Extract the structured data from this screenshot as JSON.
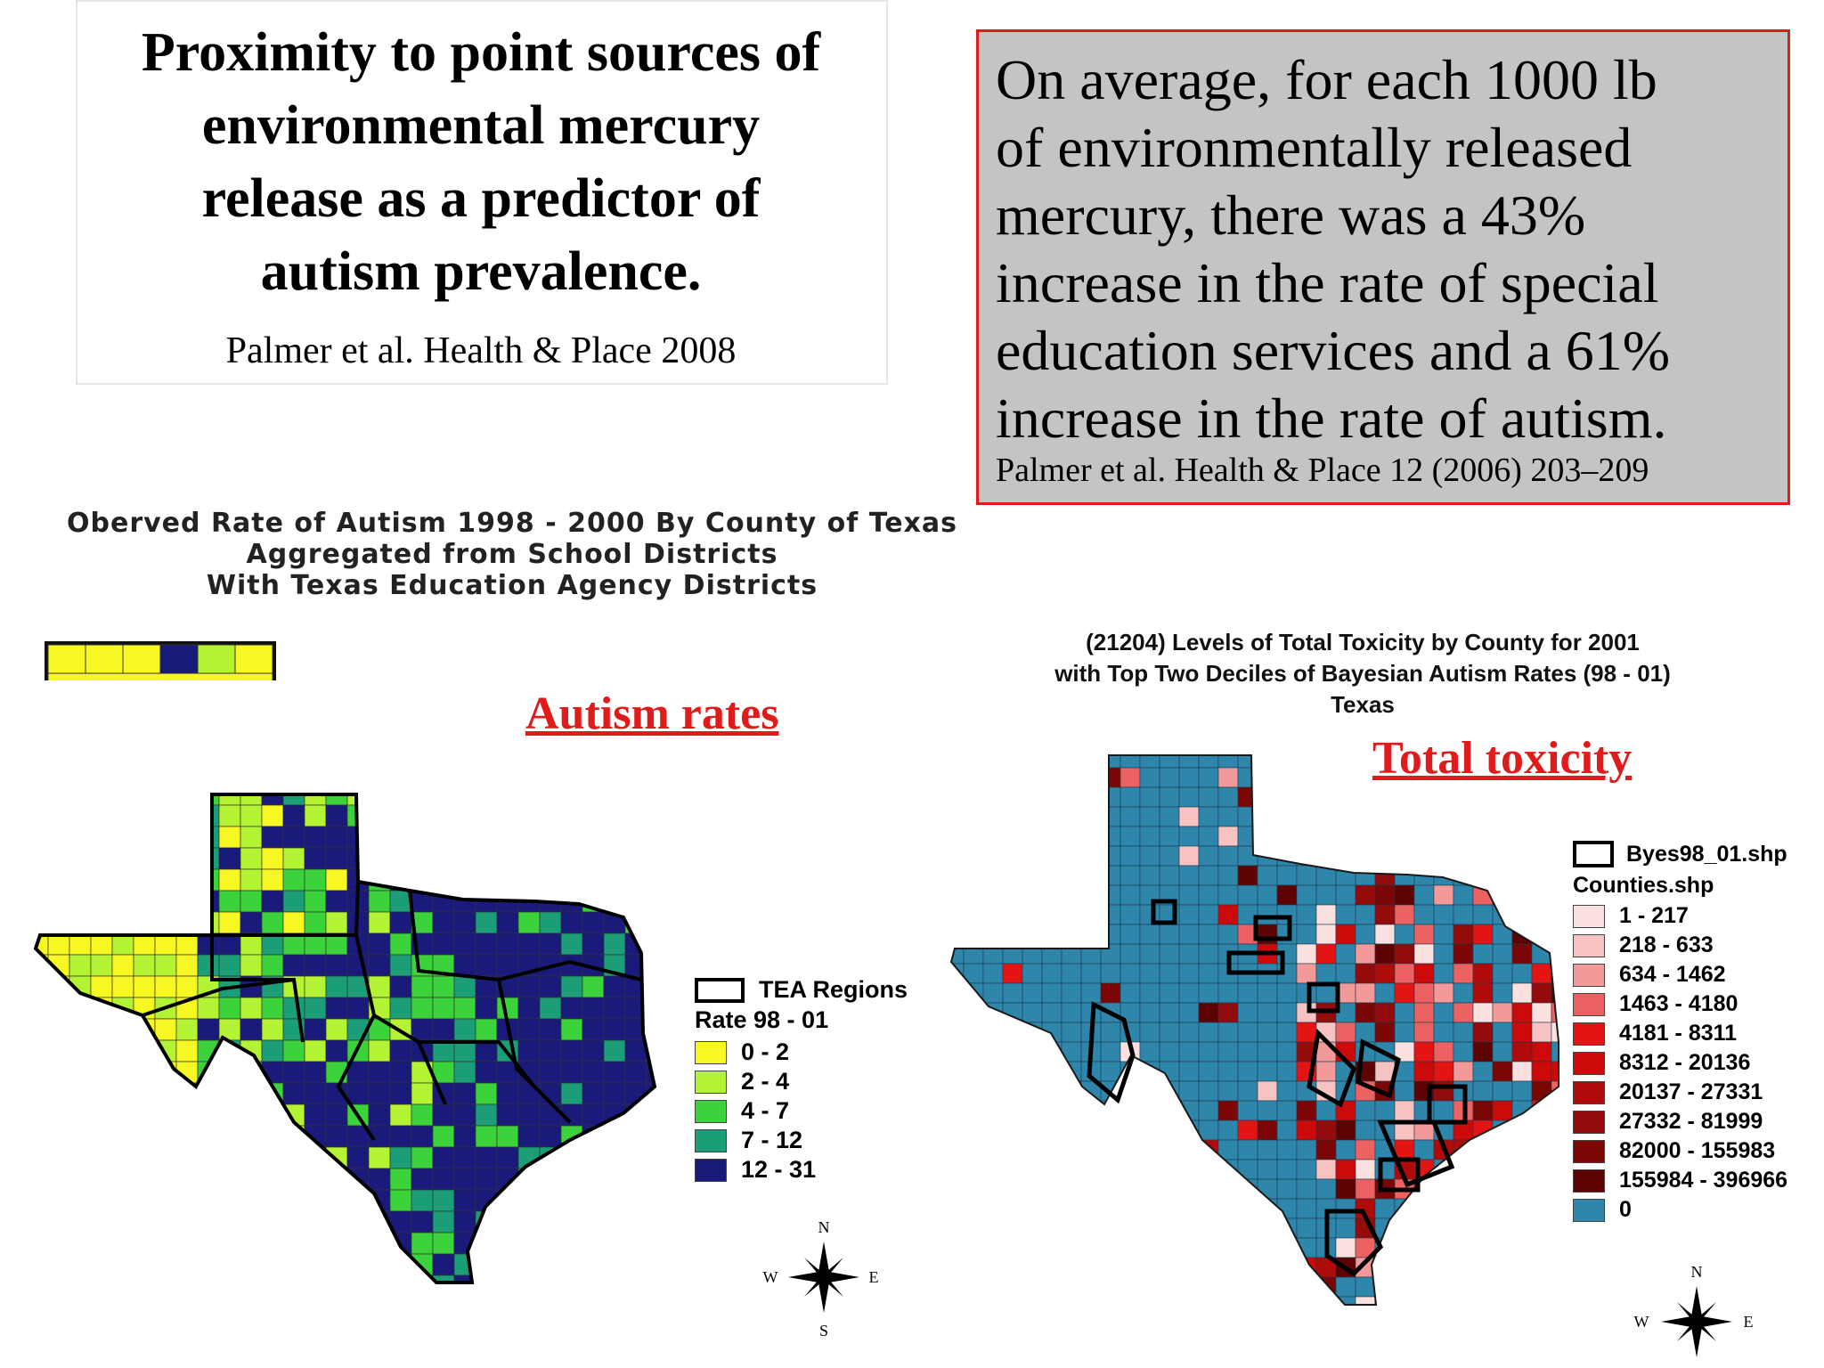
{
  "title": {
    "lines": [
      "Proximity to point sources of",
      "environmental mercury",
      "release as a predictor of",
      "autism prevalence."
    ],
    "citation": "Palmer et al. Health & Place 2008"
  },
  "stat": {
    "lines": [
      "On average, for each 1000 lb",
      "of environmentally released",
      "mercury, there was a 43%",
      "increase in the rate of special",
      "education services and a 61%",
      "increase in the rate of autism."
    ],
    "citation": "Palmer et al. Health & Place 12 (2006) 203–209"
  },
  "left_map": {
    "title_lines": [
      "Oberved Rate of Autism 1998 - 2000 By County of Texas",
      "Aggregated from School Districts",
      "With Texas Education Agency Districts"
    ],
    "label": "Autism rates",
    "legend": {
      "outline_label": "TEA Regions",
      "heading": "Rate 98 - 01",
      "classes": [
        {
          "label": "0 - 2",
          "color": "#f7f724"
        },
        {
          "label": "2 - 4",
          "color": "#b4f234"
        },
        {
          "label": "4 - 7",
          "color": "#3cd23c"
        },
        {
          "label": "7 - 12",
          "color": "#1b9e78"
        },
        {
          "label": "12 - 31",
          "color": "#1a1a7a"
        }
      ]
    },
    "compass": {
      "n": "N",
      "s": "S",
      "e": "E",
      "w": "W"
    }
  },
  "right_map": {
    "title_lines": [
      "(21204) Levels of Total Toxicity by County for 2001",
      "with Top Two Deciles of Bayesian Autism Rates (98 - 01)",
      "Texas"
    ],
    "label": "Total toxicity",
    "legend": {
      "outline_label": "Byes98_01.shp",
      "heading": "Counties.shp",
      "classes": [
        {
          "label": "1 - 217",
          "color": "#fbe0e0"
        },
        {
          "label": "218 - 633",
          "color": "#f7c2c2"
        },
        {
          "label": "634 - 1462",
          "color": "#f29a9a"
        },
        {
          "label": "1463 - 4180",
          "color": "#ec6262"
        },
        {
          "label": "4181 - 8311",
          "color": "#e31414"
        },
        {
          "label": "8312 - 20136",
          "color": "#cc0a0a"
        },
        {
          "label": "20137 - 27331",
          "color": "#b00b0b"
        },
        {
          "label": "27332 - 81999",
          "color": "#930b0b"
        },
        {
          "label": "82000 - 155983",
          "color": "#7a0606"
        },
        {
          "label": "155984 - 396966",
          "color": "#5e0303"
        },
        {
          "label": "0",
          "color": "#2e86ab"
        }
      ]
    },
    "compass": {
      "n": "N",
      "e": "E",
      "w": "W"
    }
  }
}
